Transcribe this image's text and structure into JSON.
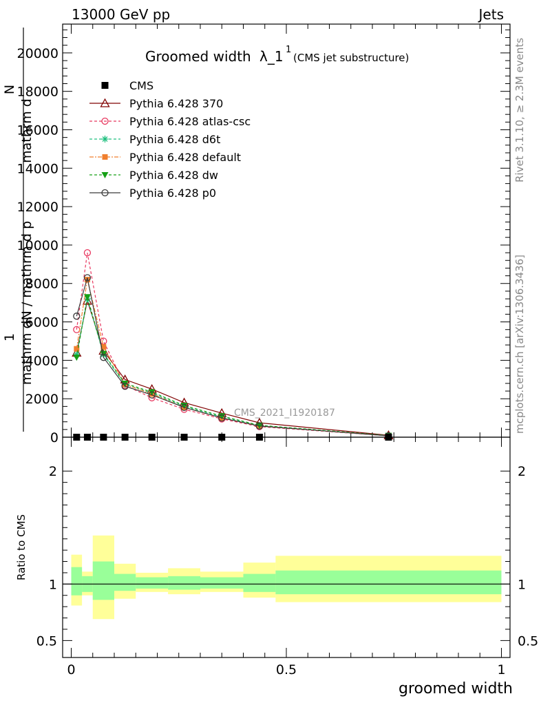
{
  "header": {
    "left": "13000 GeV pp",
    "right": "Jets"
  },
  "side_labels": {
    "rivet": "Rivet 3.1.10, ≥ 2.3M events",
    "mcplots": "mcplots.cern.ch [arXiv:1306.3436]"
  },
  "watermark": "CMS_2021_I1920187",
  "chart_data": {
    "type": "line",
    "title": "Groomed width",
    "title_symbol": "λ_1",
    "title_sup": "1",
    "title_sub": "(CMS jet substructure)",
    "ylabel_lines": [
      "1",
      "mathrm d²N / mathrm d p_T mathrm d lambda",
      "mathrm d²N",
      "mathrm d p_T mathrm d lambda"
    ],
    "ylabel_main": {
      "num": "1",
      "den": "mathrm dN / mathrm d p",
      "extra1": "mathrm d",
      "extra2": "N",
      "extra3": "mathrm d p_T mathrm d lambda",
      "extra4": "mathrm d p T mathrm d lambda"
    },
    "xlabel": "groomed width",
    "ratio_ylabel": "Ratio to CMS",
    "xlim": [
      -0.02,
      1.02
    ],
    "ylim": [
      0,
      21500
    ],
    "ratio_ylim": [
      0.35,
      2.3
    ],
    "y_ticks": [
      0,
      2000,
      4000,
      6000,
      8000,
      10000,
      12000,
      14000,
      16000,
      18000,
      20000
    ],
    "y_tick_labels": [
      "0",
      "2000",
      "4000",
      "6000",
      "8000",
      "10000",
      "12000",
      "14000",
      "16000",
      "18000",
      "20000"
    ],
    "x_ticks": [
      0,
      0.5,
      1
    ],
    "x_tick_labels": [
      "0",
      "0.5",
      "1"
    ],
    "ratio_ticks": [
      0.5,
      1,
      2
    ],
    "ratio_tick_labels": [
      "0.5",
      "1",
      "2"
    ],
    "bins": [
      0.0,
      0.025,
      0.05,
      0.1,
      0.15,
      0.225,
      0.3,
      0.4,
      0.475,
      1.0
    ],
    "data": {
      "name": "CMS",
      "x": [
        0.0125,
        0.0375,
        0.075,
        0.125,
        0.1875,
        0.2625,
        0.35,
        0.4375,
        0.7375
      ],
      "y": [
        0,
        0,
        0,
        0,
        0,
        0,
        0,
        0,
        0
      ]
    },
    "ratio_band_inner": [
      [
        0.0,
        0.025,
        0.9,
        1.15
      ],
      [
        0.025,
        0.05,
        0.93,
        1.07
      ],
      [
        0.05,
        0.1,
        0.86,
        1.2
      ],
      [
        0.1,
        0.15,
        0.94,
        1.09
      ],
      [
        0.15,
        0.225,
        0.96,
        1.06
      ],
      [
        0.225,
        0.3,
        0.95,
        1.07
      ],
      [
        0.3,
        0.4,
        0.96,
        1.06
      ],
      [
        0.4,
        0.475,
        0.93,
        1.09
      ],
      [
        0.475,
        1.0,
        0.91,
        1.12
      ]
    ],
    "ratio_band_outer": [
      [
        0.0,
        0.025,
        0.81,
        1.26
      ],
      [
        0.025,
        0.05,
        0.9,
        1.11
      ],
      [
        0.05,
        0.1,
        0.69,
        1.43
      ],
      [
        0.1,
        0.15,
        0.87,
        1.18
      ],
      [
        0.15,
        0.225,
        0.93,
        1.1
      ],
      [
        0.225,
        0.3,
        0.91,
        1.14
      ],
      [
        0.3,
        0.4,
        0.93,
        1.11
      ],
      [
        0.4,
        0.475,
        0.88,
        1.19
      ],
      [
        0.475,
        1.0,
        0.84,
        1.25
      ]
    ],
    "series": [
      {
        "name": "Pythia 6.428 370",
        "color": "#800000",
        "dash": "",
        "marker": "triangle-open",
        "x": [
          0.0125,
          0.0375,
          0.075,
          0.125,
          0.1875,
          0.2625,
          0.35,
          0.4375,
          0.7375
        ],
        "y": [
          4400,
          7100,
          4500,
          3000,
          2500,
          1800,
          1250,
          750,
          100
        ]
      },
      {
        "name": "Pythia 6.428 atlas-csc",
        "color": "#e8365e",
        "dash": "4,3",
        "marker": "circle-open",
        "x": [
          0.0125,
          0.0375,
          0.075,
          0.125,
          0.1875,
          0.2625,
          0.35,
          0.4375,
          0.7375
        ],
        "y": [
          5600,
          9600,
          5000,
          2700,
          2050,
          1450,
          950,
          550,
          70
        ]
      },
      {
        "name": "Pythia 6.428 d6t",
        "color": "#1fbf7f",
        "dash": "4,3",
        "marker": "star",
        "x": [
          0.0125,
          0.0375,
          0.075,
          0.125,
          0.1875,
          0.2625,
          0.35,
          0.4375,
          0.7375
        ],
        "y": [
          4300,
          7200,
          4300,
          2750,
          2300,
          1600,
          1050,
          600,
          80
        ]
      },
      {
        "name": "Pythia 6.428 default",
        "color": "#f07f2e",
        "dash": "6,2,2,2",
        "marker": "square",
        "x": [
          0.0125,
          0.0375,
          0.075,
          0.125,
          0.1875,
          0.2625,
          0.35,
          0.4375,
          0.7375
        ],
        "y": [
          4600,
          8200,
          4700,
          2750,
          2250,
          1550,
          1000,
          580,
          75
        ]
      },
      {
        "name": "Pythia 6.428 dw",
        "color": "#16a016",
        "dash": "4,3",
        "marker": "triangle-down",
        "x": [
          0.0125,
          0.0375,
          0.075,
          0.125,
          0.1875,
          0.2625,
          0.35,
          0.4375,
          0.7375
        ],
        "y": [
          4150,
          7300,
          4350,
          2800,
          2350,
          1650,
          1100,
          620,
          85
        ]
      },
      {
        "name": "Pythia 6.428 p0",
        "color": "#3a3a3a",
        "dash": "",
        "marker": "circle-open",
        "x": [
          0.0125,
          0.0375,
          0.075,
          0.125,
          0.1875,
          0.2625,
          0.35,
          0.4375,
          0.7375
        ],
        "y": [
          6300,
          8300,
          4150,
          2650,
          2200,
          1550,
          1000,
          580,
          70
        ]
      }
    ]
  }
}
